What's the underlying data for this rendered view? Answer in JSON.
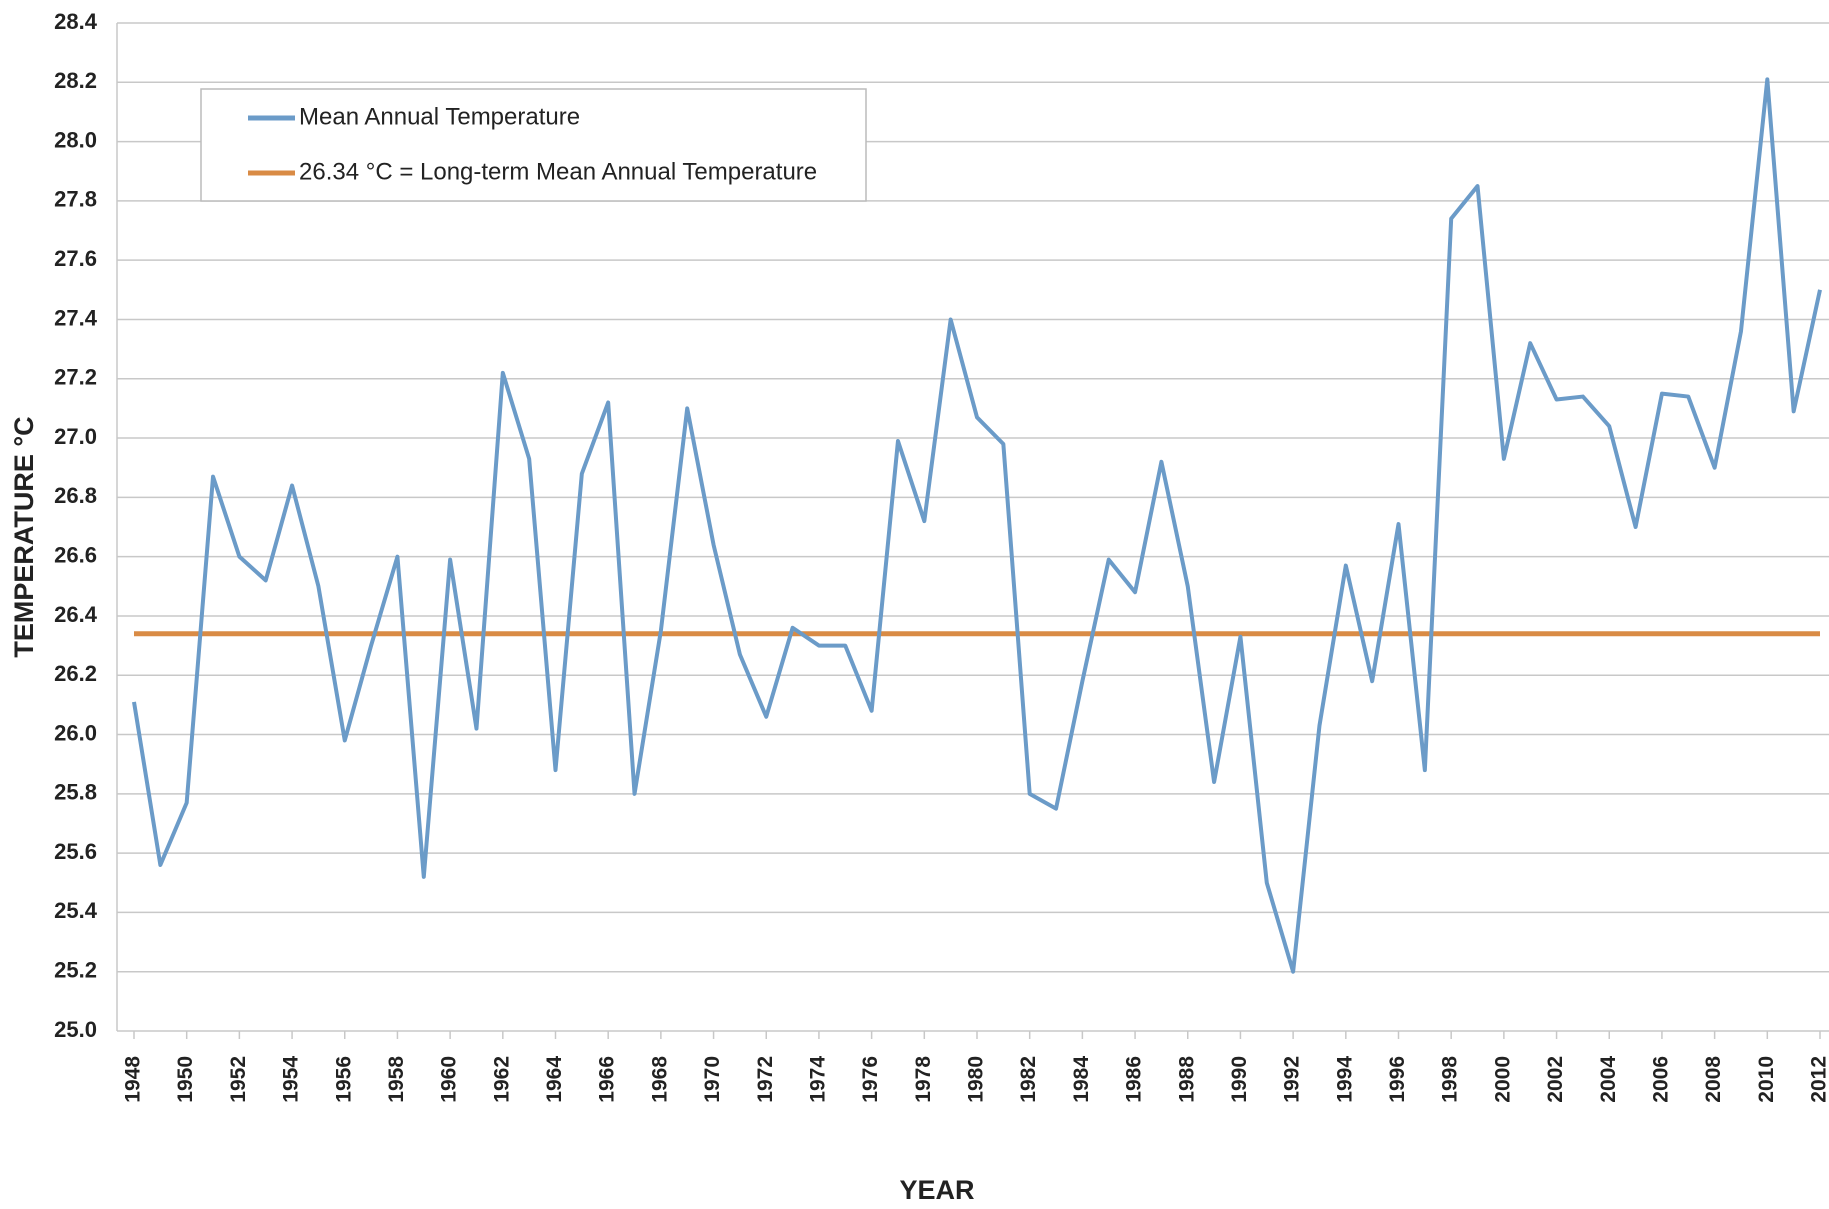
{
  "chart_data": {
    "type": "line",
    "x": [
      1948,
      1949,
      1950,
      1951,
      1952,
      1953,
      1954,
      1955,
      1956,
      1957,
      1958,
      1959,
      1960,
      1961,
      1962,
      1963,
      1964,
      1965,
      1966,
      1967,
      1968,
      1969,
      1970,
      1971,
      1972,
      1973,
      1974,
      1975,
      1976,
      1977,
      1978,
      1979,
      1980,
      1981,
      1982,
      1983,
      1984,
      1985,
      1986,
      1987,
      1988,
      1989,
      1990,
      1991,
      1992,
      1993,
      1994,
      1995,
      1996,
      1997,
      1998,
      1999,
      2000,
      2001,
      2002,
      2003,
      2004,
      2005,
      2006,
      2007,
      2008,
      2009,
      2010,
      2011,
      2012
    ],
    "series": [
      {
        "name": "Mean Annual Temperature",
        "color": "#6b9bc8",
        "values": [
          26.11,
          25.56,
          25.77,
          26.87,
          26.6,
          26.52,
          26.84,
          26.5,
          25.98,
          26.3,
          26.6,
          25.52,
          26.59,
          26.02,
          27.22,
          26.93,
          25.88,
          26.88,
          27.12,
          25.8,
          26.35,
          27.1,
          26.64,
          26.27,
          26.06,
          26.36,
          26.3,
          26.3,
          26.08,
          26.99,
          26.72,
          27.4,
          27.07,
          26.98,
          25.8,
          25.75,
          26.18,
          26.59,
          26.48,
          26.92,
          26.5,
          25.84,
          26.33,
          25.5,
          25.2,
          26.03,
          26.57,
          26.18,
          26.71,
          25.88,
          27.74,
          27.85,
          26.93,
          27.32,
          27.13,
          27.14,
          27.04,
          26.7,
          27.15,
          27.14,
          26.9,
          27.36,
          28.21,
          27.09,
          27.5
        ]
      }
    ],
    "mean_line": {
      "name": "26.34 °C = Long-term Mean Annual Temperature",
      "value": 26.34,
      "color": "#d98b45"
    },
    "xlim": [
      1948,
      2012
    ],
    "xticks": [
      1948,
      1950,
      1952,
      1954,
      1956,
      1958,
      1960,
      1962,
      1964,
      1966,
      1968,
      1970,
      1972,
      1974,
      1976,
      1978,
      1980,
      1982,
      1984,
      1986,
      1988,
      1990,
      1992,
      1994,
      1996,
      1998,
      2000,
      2002,
      2004,
      2006,
      2008,
      2010,
      2012
    ],
    "ylim": [
      25.0,
      28.4
    ],
    "yticks": [
      {
        "value": 25.0,
        "label": "25.0"
      },
      25.2,
      25.4,
      25.6,
      25.8,
      {
        "value": 26.0,
        "label": "26.0"
      },
      26.2,
      26.4,
      26.6,
      26.8,
      {
        "value": 27.0,
        "label": "27.0"
      },
      27.2,
      27.4,
      27.6,
      27.8,
      {
        "value": 28.0,
        "label": "28.0"
      },
      28.2,
      28.4
    ],
    "xlabel": "YEAR",
    "ylabel": "TEMPERATURE °C",
    "grid": true
  }
}
